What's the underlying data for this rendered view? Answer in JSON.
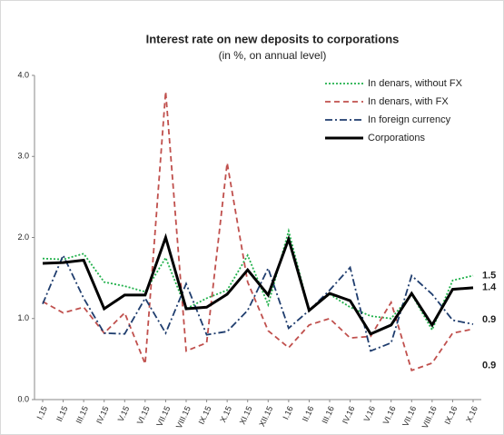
{
  "chart_data": {
    "type": "line",
    "title": "Interest rate on new deposits to corporations",
    "subtitle": "(in %, on annual level)",
    "categories": [
      "I.15",
      "II.15",
      "III.15",
      "IV.15",
      "V.15",
      "VI.15",
      "VII.15",
      "VIII.15",
      "IX.15",
      "X.15",
      "XI.15",
      "XII.15",
      "I.16",
      "II.16",
      "III.16",
      "IV.16",
      "V.16",
      "VI.16",
      "VII.16",
      "VIII.16",
      "IX.16",
      "X.16"
    ],
    "series": [
      {
        "name": "In denars, without FX",
        "color": "#22b14c",
        "style": "dotted",
        "values": [
          1.74,
          1.73,
          1.8,
          1.45,
          1.4,
          1.33,
          1.75,
          1.12,
          1.25,
          1.35,
          1.78,
          1.17,
          2.08,
          1.1,
          1.3,
          1.14,
          1.03,
          1.0,
          1.3,
          0.86,
          1.47,
          1.53
        ],
        "value_labels": [
          null,
          null,
          null,
          null,
          null,
          null,
          null,
          null,
          null,
          null,
          null,
          null,
          null,
          null,
          null,
          null,
          null,
          null,
          null,
          null,
          null,
          "1.5"
        ]
      },
      {
        "name": "In denars, with FX",
        "color": "#c0504d",
        "style": "dashed",
        "values": [
          1.21,
          1.07,
          1.14,
          0.82,
          1.07,
          0.44,
          3.8,
          0.6,
          0.7,
          2.92,
          1.45,
          0.85,
          0.64,
          0.92,
          1.0,
          0.76,
          0.78,
          1.2,
          0.36,
          0.45,
          0.82,
          0.87
        ],
        "value_labels": [
          null,
          null,
          null,
          null,
          null,
          null,
          null,
          null,
          null,
          null,
          null,
          null,
          null,
          null,
          null,
          null,
          null,
          null,
          null,
          null,
          null,
          "0.9"
        ]
      },
      {
        "name": "In foreign currency",
        "color": "#1f3d6e",
        "style": "dashdot",
        "values": [
          1.18,
          1.78,
          1.25,
          0.82,
          0.81,
          1.25,
          0.82,
          1.43,
          0.8,
          0.84,
          1.1,
          1.62,
          0.88,
          1.1,
          1.35,
          1.63,
          0.6,
          0.7,
          1.53,
          1.3,
          0.98,
          0.93
        ],
        "value_labels": [
          null,
          null,
          null,
          null,
          null,
          null,
          null,
          null,
          null,
          null,
          null,
          null,
          null,
          null,
          null,
          null,
          null,
          null,
          null,
          null,
          null,
          "0.9"
        ]
      },
      {
        "name": "Corporations",
        "color": "#000000",
        "style": "solid",
        "values": [
          1.68,
          1.69,
          1.72,
          1.12,
          1.29,
          1.29,
          2.0,
          1.12,
          1.14,
          1.3,
          1.6,
          1.29,
          1.98,
          1.1,
          1.31,
          1.22,
          0.81,
          0.92,
          1.31,
          0.92,
          1.36,
          1.38
        ],
        "value_labels": [
          null,
          null,
          null,
          null,
          null,
          null,
          null,
          null,
          null,
          null,
          null,
          null,
          null,
          null,
          null,
          null,
          null,
          null,
          null,
          null,
          null,
          "1.4"
        ]
      }
    ],
    "ylim": [
      0,
      4
    ],
    "yticks": [
      {
        "value": 0,
        "label": "0.0"
      },
      {
        "value": 1,
        "label": "1.0"
      },
      {
        "value": 2,
        "label": "2.0"
      },
      {
        "value": 3,
        "label": "3.0"
      },
      {
        "value": 4,
        "label": "4.0"
      }
    ],
    "grid": false,
    "legend": "top-right"
  }
}
